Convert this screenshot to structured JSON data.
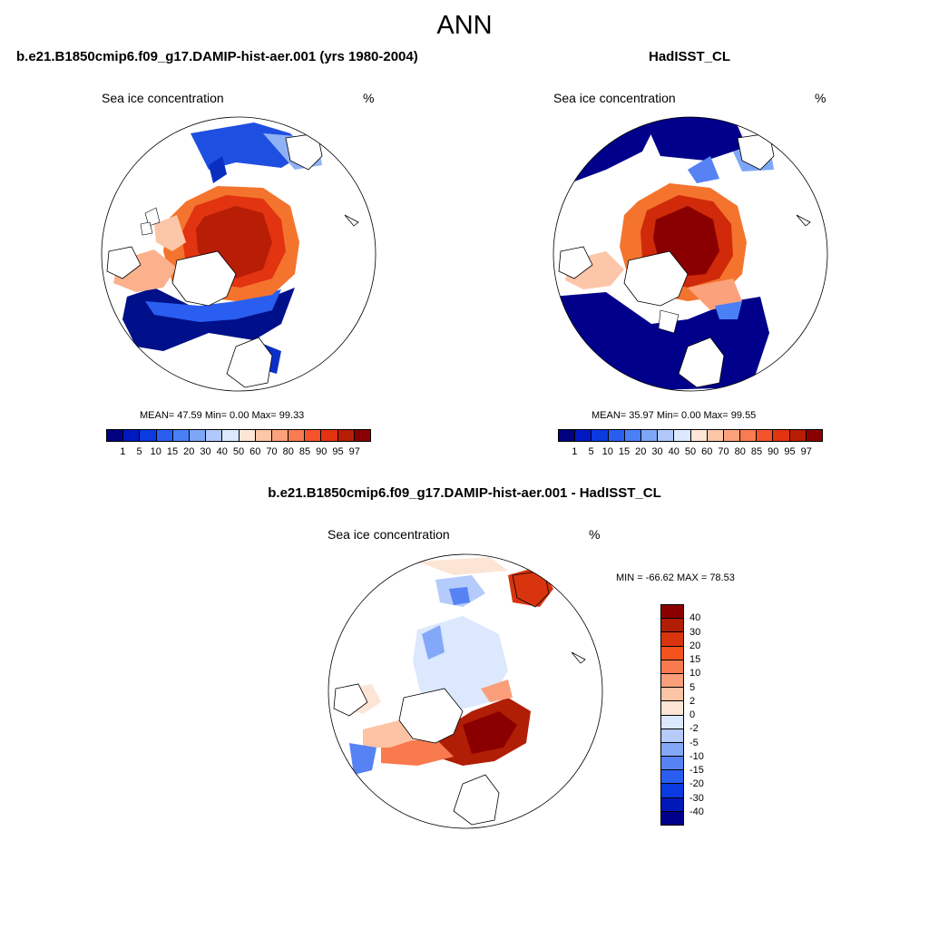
{
  "main_title": "ANN",
  "panels": {
    "model": {
      "title": "b.e21.B1850cmip6.f09_g17.DAMIP-hist-aer.001 (yrs 1980-2004)",
      "left_label": "Sea ice concentration",
      "right_label": "%",
      "stats": "MEAN=  47.59  Min=    0.00  Max=  99.33"
    },
    "obs": {
      "title": "HadISST_CL",
      "left_label": "Sea ice concentration",
      "right_label": "%",
      "stats": "MEAN=  35.97  Min=    0.00  Max=  99.55"
    },
    "diff": {
      "title": "b.e21.B1850cmip6.f09_g17.DAMIP-hist-aer.001 - HadISST_CL",
      "left_label": "Sea ice concentration",
      "right_label": "%",
      "stats": "MIN = -66.62 MAX =  78.53"
    }
  },
  "colorbar_abs": {
    "colors": [
      "#000080",
      "#0018c0",
      "#0a3ae0",
      "#2a5ef0",
      "#4a80f5",
      "#7ea6f8",
      "#b0c8fb",
      "#dce8fd",
      "#fde6d6",
      "#fcc6a8",
      "#fba27c",
      "#f97b52",
      "#f5532c",
      "#e23410",
      "#b81e06",
      "#8a0000"
    ],
    "ticks": [
      "1",
      "5",
      "10",
      "15",
      "20",
      "30",
      "40",
      "50",
      "60",
      "70",
      "80",
      "85",
      "90",
      "95",
      "97"
    ]
  },
  "colorbar_diff": {
    "colors": [
      "#8a0000",
      "#b01e06",
      "#d8340e",
      "#f4531e",
      "#f87a4e",
      "#fa9f7a",
      "#fcc3a4",
      "#fde5d6",
      "#dce8fd",
      "#b4cbfb",
      "#84a8f8",
      "#5682f4",
      "#2a5ef0",
      "#0a3ae0",
      "#0018b8",
      "#00008a"
    ],
    "ticks": [
      "40",
      "30",
      "20",
      "15",
      "10",
      "5",
      "2",
      "0",
      "-2",
      "-5",
      "-10",
      "-15",
      "-20",
      "-30",
      "-40"
    ]
  }
}
